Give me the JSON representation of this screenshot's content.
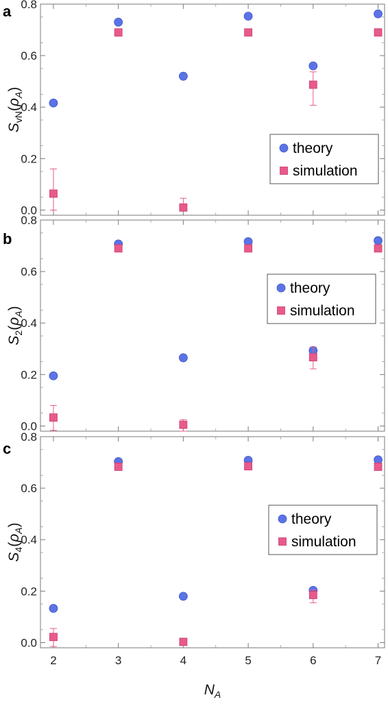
{
  "chart_data": [
    {
      "type": "scatter",
      "panel_label": "a",
      "ylabel": {
        "main": "S",
        "sub": "vN",
        "arg_main": "ρ",
        "arg_sub": "A"
      },
      "x": [
        2,
        3,
        4,
        5,
        6,
        7
      ],
      "xlim": [
        1.8,
        7.1
      ],
      "ylim": [
        -0.02,
        0.8
      ],
      "yticks": [
        0.0,
        0.2,
        0.4,
        0.6,
        0.8
      ],
      "ytick_labels": [
        "0.0",
        "0.2",
        "0.4",
        "0.6",
        "0.8"
      ],
      "legend_position": "center-right",
      "series": [
        {
          "name": "theory",
          "marker": "circle",
          "color": "#5b73e6",
          "values": [
            0.416,
            0.73,
            0.52,
            0.753,
            0.56,
            0.762
          ]
        },
        {
          "name": "simulation",
          "marker": "square",
          "color": "#e85a8c",
          "values": [
            0.064,
            0.69,
            0.01,
            0.69,
            0.487,
            0.69
          ],
          "error_low": [
            0.064,
            0.0,
            0.01,
            0.0,
            0.08,
            0.0
          ],
          "error_high": [
            0.096,
            0.0,
            0.036,
            0.0,
            0.05,
            0.0
          ]
        }
      ]
    },
    {
      "type": "scatter",
      "panel_label": "b",
      "ylabel": {
        "main": "S",
        "sub": "2",
        "arg_main": "ρ",
        "arg_sub": "A"
      },
      "x": [
        2,
        3,
        4,
        5,
        6,
        7
      ],
      "xlim": [
        1.8,
        7.1
      ],
      "ylim": [
        -0.02,
        0.8
      ],
      "yticks": [
        0.0,
        0.2,
        0.4,
        0.6,
        0.8
      ],
      "ytick_labels": [
        "0.0",
        "0.2",
        "0.4",
        "0.6",
        "0.8"
      ],
      "legend_position": "center-right",
      "series": [
        {
          "name": "theory",
          "marker": "circle",
          "color": "#5b73e6",
          "values": [
            0.195,
            0.707,
            0.265,
            0.716,
            0.293,
            0.72
          ]
        },
        {
          "name": "simulation",
          "marker": "square",
          "color": "#e85a8c",
          "values": [
            0.033,
            0.69,
            0.005,
            0.69,
            0.267,
            0.69
          ],
          "error_low": [
            0.05,
            0.0,
            0.025,
            0.0,
            0.045,
            0.0
          ],
          "error_high": [
            0.047,
            0.0,
            0.02,
            0.0,
            0.04,
            0.0
          ]
        }
      ]
    },
    {
      "type": "scatter",
      "panel_label": "c",
      "ylabel": {
        "main": "S",
        "sub": "4",
        "arg_main": "ρ",
        "arg_sub": "A"
      },
      "xlabel": {
        "main": "N",
        "sub": "A"
      },
      "x": [
        2,
        3,
        4,
        5,
        6,
        7
      ],
      "xlim": [
        1.8,
        7.1
      ],
      "xticks": [
        2,
        3,
        4,
        5,
        6,
        7
      ],
      "xtick_labels": [
        "2",
        "3",
        "4",
        "5",
        "6",
        "7"
      ],
      "ylim": [
        -0.02,
        0.8
      ],
      "yticks": [
        0.0,
        0.2,
        0.4,
        0.6,
        0.8
      ],
      "ytick_labels": [
        "0.0",
        "0.2",
        "0.4",
        "0.6",
        "0.8"
      ],
      "legend_position": "center-right",
      "series": [
        {
          "name": "theory",
          "marker": "circle",
          "color": "#5b73e6",
          "values": [
            0.133,
            0.703,
            0.18,
            0.708,
            0.203,
            0.71
          ]
        },
        {
          "name": "simulation",
          "marker": "square",
          "color": "#e85a8c",
          "values": [
            0.022,
            0.683,
            0.003,
            0.685,
            0.185,
            0.683
          ],
          "error_low": [
            0.037,
            0.0,
            0.0,
            0.0,
            0.03,
            0.0
          ],
          "error_high": [
            0.033,
            0.0,
            0.0,
            0.0,
            0.02,
            0.0
          ]
        }
      ]
    }
  ]
}
